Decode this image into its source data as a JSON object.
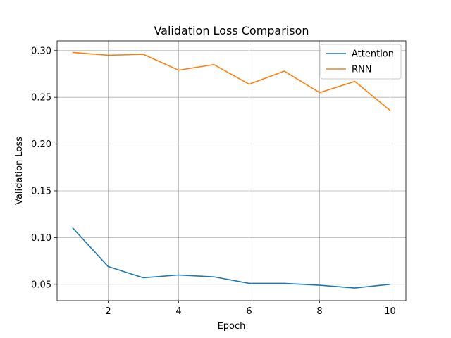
{
  "chart_data": {
    "type": "line",
    "title": "Validation Loss Comparison",
    "xlabel": "Epoch",
    "ylabel": "Validation Loss",
    "xlim": [
      0.55,
      10.45
    ],
    "ylim": [
      0.0325,
      0.3104
    ],
    "xticks": [
      2,
      4,
      6,
      8,
      10
    ],
    "yticks": [
      0.05,
      0.1,
      0.15,
      0.2,
      0.25,
      0.3
    ],
    "ytick_labels": [
      "0.05",
      "0.10",
      "0.15",
      "0.20",
      "0.25",
      "0.30"
    ],
    "grid": true,
    "legend_position": "top-right",
    "x": [
      1,
      2,
      3,
      4,
      5,
      6,
      7,
      8,
      9,
      10
    ],
    "series": [
      {
        "name": "Attention",
        "color": "#1f77b4",
        "values": [
          0.11,
          0.069,
          0.057,
          0.06,
          0.058,
          0.051,
          0.051,
          0.049,
          0.046,
          0.05
        ]
      },
      {
        "name": "RNN",
        "color": "#ff7f0e",
        "values": [
          0.298,
          0.295,
          0.296,
          0.279,
          0.285,
          0.264,
          0.278,
          0.255,
          0.267,
          0.236
        ]
      }
    ]
  }
}
